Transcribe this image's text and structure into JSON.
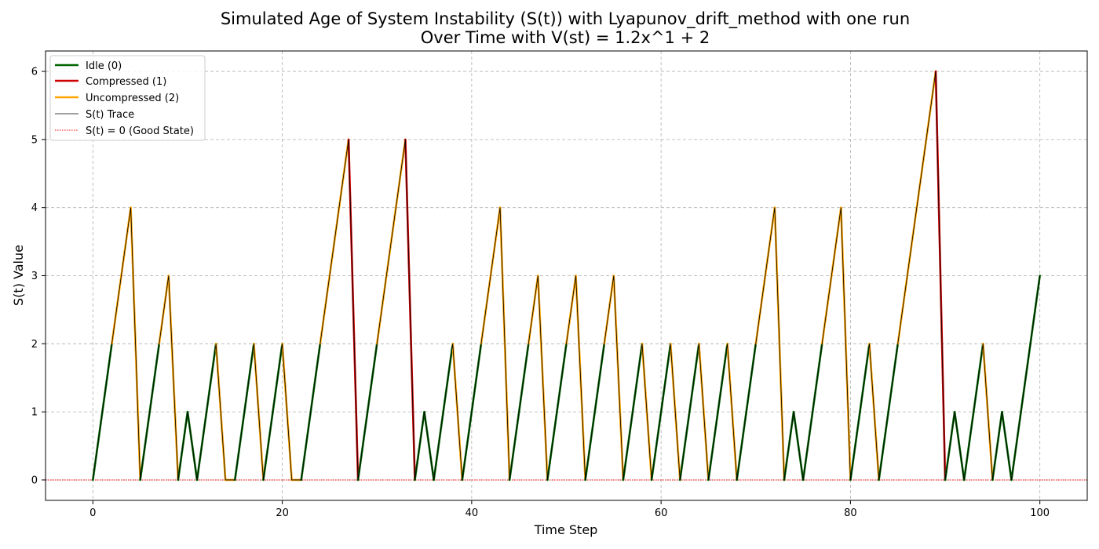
{
  "chart_data": {
    "type": "line",
    "title": "Simulated Age of System Instability (S(t)) with Lyapunov_drift_method with one run",
    "subtitle": "Over Time with V(st) = 1.2x^1 + 2",
    "xlabel": "Time Step",
    "ylabel": "S(t) Value",
    "xlim": [
      -5,
      105
    ],
    "ylim": [
      -0.3,
      6.3
    ],
    "xticks": [
      0,
      20,
      40,
      60,
      80,
      100
    ],
    "yticks": [
      0,
      1,
      2,
      3,
      4,
      5,
      6
    ],
    "grid": true,
    "legend_position": "top-left",
    "states": [
      {
        "code": 0,
        "name": "Idle (0)",
        "color": "#006400"
      },
      {
        "code": 1,
        "name": "Compressed (1)",
        "color": "#cc0000"
      },
      {
        "code": 2,
        "name": "Uncompressed (2)",
        "color": "#ffa500"
      }
    ],
    "trace": {
      "name": "S(t) Trace",
      "color": "#000000"
    },
    "reference_line": {
      "name": "S(t) = 0 (Good State)",
      "y": 0,
      "color": "#ff0000"
    },
    "x": [
      0,
      1,
      2,
      3,
      4,
      5,
      6,
      7,
      8,
      9,
      10,
      11,
      12,
      13,
      14,
      15,
      16,
      17,
      18,
      19,
      20,
      21,
      22,
      23,
      24,
      25,
      26,
      27,
      28,
      29,
      30,
      31,
      32,
      33,
      34,
      35,
      36,
      37,
      38,
      39,
      40,
      41,
      42,
      43,
      44,
      45,
      46,
      47,
      48,
      49,
      50,
      51,
      52,
      53,
      54,
      55,
      56,
      57,
      58,
      59,
      60,
      61,
      62,
      63,
      64,
      65,
      66,
      67,
      68,
      69,
      70,
      71,
      72,
      73,
      74,
      75,
      76,
      77,
      78,
      79,
      80,
      81,
      82,
      83,
      84,
      85,
      86,
      87,
      88,
      89,
      90,
      91,
      92,
      93,
      94,
      95,
      96,
      97,
      98,
      99,
      100
    ],
    "s_values": [
      0,
      1,
      2,
      3,
      4,
      0,
      1,
      2,
      3,
      0,
      1,
      0,
      1,
      2,
      0,
      0,
      1,
      2,
      0,
      1,
      2,
      0,
      0,
      1,
      2,
      3,
      4,
      5,
      0,
      1,
      2,
      3,
      4,
      5,
      0,
      1,
      0,
      1,
      2,
      0,
      1,
      2,
      3,
      4,
      0,
      1,
      2,
      3,
      0,
      1,
      2,
      3,
      0,
      1,
      2,
      3,
      0,
      1,
      2,
      0,
      1,
      2,
      0,
      1,
      2,
      0,
      1,
      2,
      0,
      1,
      2,
      3,
      4,
      0,
      1,
      0,
      1,
      2,
      3,
      4,
      0,
      1,
      2,
      0,
      1,
      2,
      3,
      4,
      5,
      6,
      0,
      1,
      0,
      1,
      2,
      0,
      1,
      0,
      1,
      2,
      3
    ],
    "actions": [
      0,
      0,
      2,
      2,
      2,
      0,
      0,
      2,
      2,
      0,
      0,
      0,
      0,
      2,
      2,
      0,
      0,
      2,
      0,
      0,
      2,
      2,
      0,
      0,
      2,
      2,
      2,
      1,
      0,
      0,
      2,
      2,
      2,
      1,
      0,
      0,
      0,
      0,
      2,
      0,
      0,
      2,
      2,
      2,
      0,
      0,
      2,
      2,
      0,
      0,
      2,
      2,
      0,
      0,
      2,
      2,
      0,
      0,
      2,
      0,
      0,
      2,
      0,
      0,
      2,
      0,
      0,
      2,
      0,
      0,
      2,
      2,
      2,
      0,
      0,
      0,
      0,
      2,
      2,
      2,
      0,
      0,
      2,
      0,
      0,
      2,
      2,
      2,
      2,
      1,
      0,
      0,
      0,
      0,
      2,
      0,
      0,
      0,
      0,
      0,
      0
    ]
  }
}
